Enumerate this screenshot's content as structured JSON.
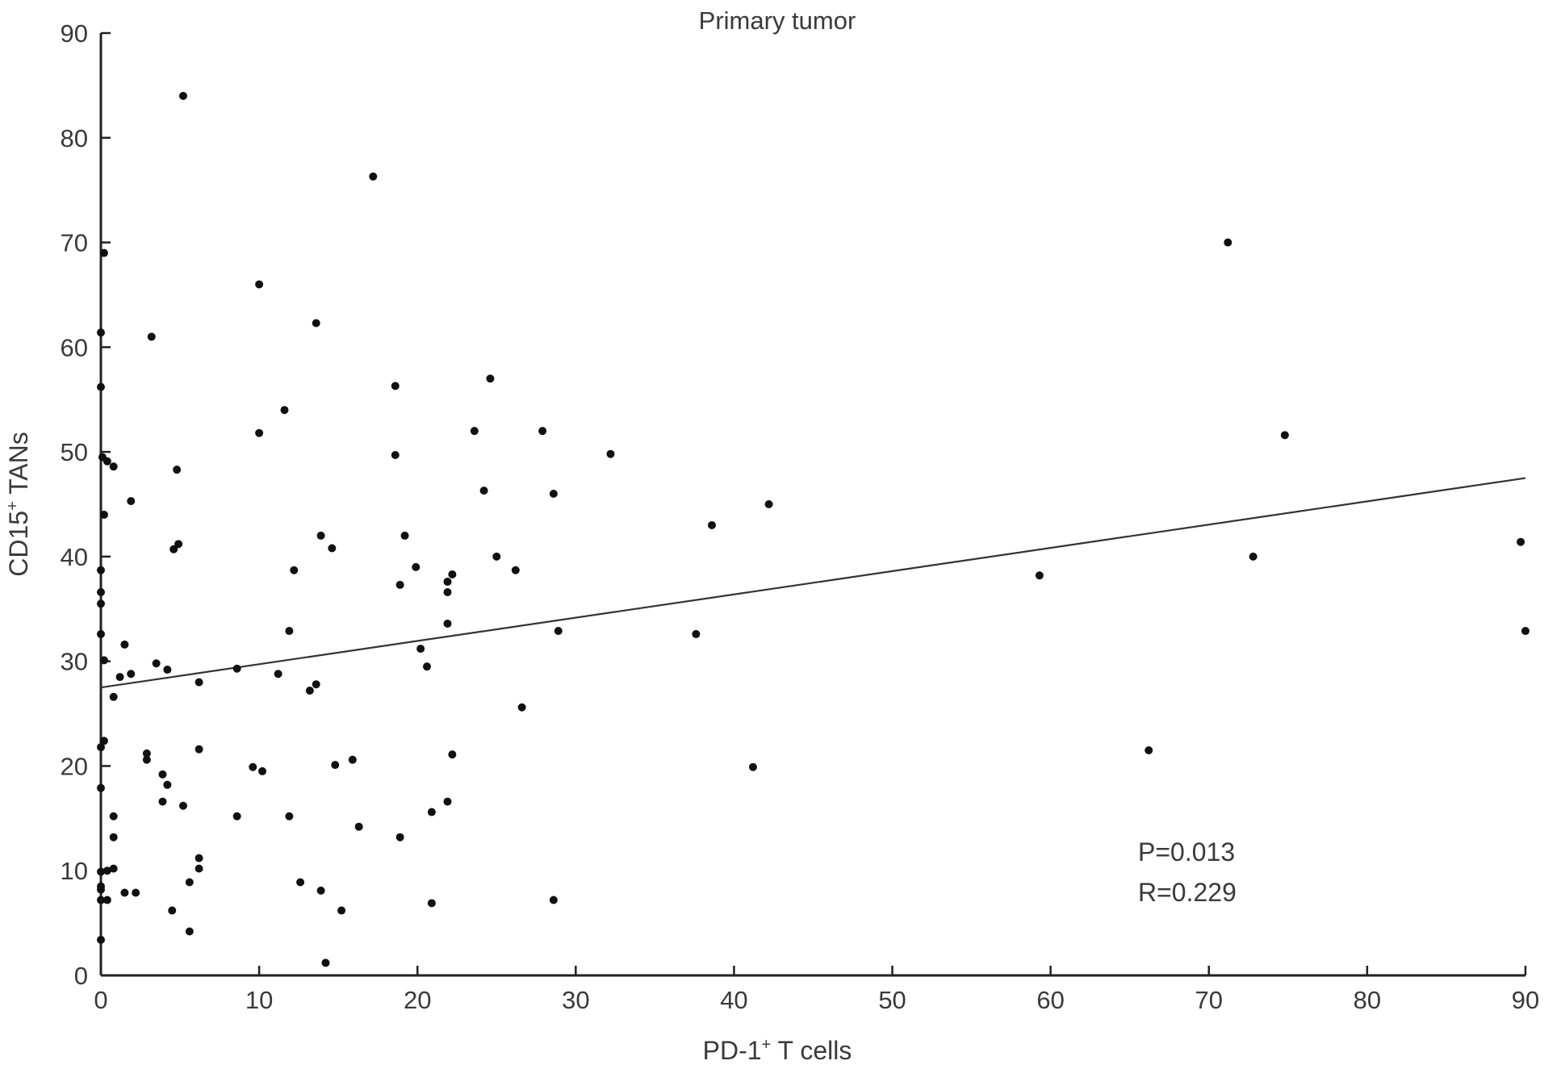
{
  "chart_data": {
    "type": "scatter",
    "title": "Primary tumor",
    "xlabel": "PD-1",
    "xlabel_sup": "+",
    "xlabel_suffix": " T cells",
    "ylabel": "CD15",
    "ylabel_sup": "+",
    "ylabel_suffix": " TANs",
    "xlim": [
      0,
      90
    ],
    "ylim": [
      0,
      90
    ],
    "xticks": [
      0,
      10,
      20,
      30,
      40,
      50,
      60,
      70,
      80,
      90
    ],
    "yticks": [
      0,
      10,
      20,
      30,
      40,
      50,
      60,
      70,
      80,
      90
    ],
    "grid": false,
    "annotations": [
      "P=0.013",
      "R=0.229"
    ],
    "regression": {
      "x": [
        0,
        90
      ],
      "y": [
        27.5,
        47.5
      ]
    },
    "points": [
      [
        5.2,
        84
      ],
      [
        17.2,
        76.3
      ],
      [
        71.2,
        70
      ],
      [
        0.2,
        69
      ],
      [
        10,
        66
      ],
      [
        13.6,
        62.3
      ],
      [
        0,
        61.4
      ],
      [
        3.2,
        61
      ],
      [
        0,
        56.2
      ],
      [
        18.6,
        56.3
      ],
      [
        24.6,
        57
      ],
      [
        11.6,
        54
      ],
      [
        74.8,
        51.6
      ],
      [
        10,
        51.8
      ],
      [
        23.6,
        52
      ],
      [
        27.9,
        52
      ],
      [
        32.2,
        49.8
      ],
      [
        18.6,
        49.7
      ],
      [
        0.1,
        49.5
      ],
      [
        0.4,
        49.1
      ],
      [
        0.8,
        48.6
      ],
      [
        4.8,
        48.3
      ],
      [
        1.9,
        45.3
      ],
      [
        28.6,
        46
      ],
      [
        24.2,
        46.3
      ],
      [
        42.2,
        45
      ],
      [
        0.2,
        44
      ],
      [
        38.6,
        43
      ],
      [
        13.9,
        42
      ],
      [
        19.2,
        42
      ],
      [
        4.6,
        40.7
      ],
      [
        4.9,
        41.2
      ],
      [
        14.6,
        40.8
      ],
      [
        25,
        40
      ],
      [
        72.8,
        40
      ],
      [
        89.7,
        41.4
      ],
      [
        0,
        38.7
      ],
      [
        12.2,
        38.7
      ],
      [
        19.9,
        39
      ],
      [
        26.2,
        38.7
      ],
      [
        22.2,
        38.3
      ],
      [
        59.3,
        38.2
      ],
      [
        18.9,
        37.3
      ],
      [
        21.9,
        37.6
      ],
      [
        21.9,
        36.6
      ],
      [
        0,
        36.6
      ],
      [
        0,
        35.5
      ],
      [
        21.9,
        33.6
      ],
      [
        11.9,
        32.9
      ],
      [
        28.9,
        32.9
      ],
      [
        37.6,
        32.6
      ],
      [
        90,
        32.9
      ],
      [
        0,
        32.6
      ],
      [
        1.5,
        31.6
      ],
      [
        20.2,
        31.2
      ],
      [
        0.2,
        30.1
      ],
      [
        3.5,
        29.8
      ],
      [
        20.6,
        29.5
      ],
      [
        8.6,
        29.3
      ],
      [
        4.2,
        29.2
      ],
      [
        11.2,
        28.8
      ],
      [
        1.9,
        28.8
      ],
      [
        1.2,
        28.5
      ],
      [
        6.2,
        28
      ],
      [
        13.6,
        27.8
      ],
      [
        13.2,
        27.2
      ],
      [
        0.8,
        26.6
      ],
      [
        26.6,
        25.6
      ],
      [
        0.2,
        22.4
      ],
      [
        0,
        21.8
      ],
      [
        6.2,
        21.6
      ],
      [
        66.2,
        21.5
      ],
      [
        2.9,
        21.2
      ],
      [
        22.2,
        21.1
      ],
      [
        2.9,
        20.6
      ],
      [
        15.9,
        20.6
      ],
      [
        14.8,
        20.1
      ],
      [
        9.6,
        19.9
      ],
      [
        41.2,
        19.9
      ],
      [
        10.2,
        19.5
      ],
      [
        3.9,
        19.2
      ],
      [
        4.2,
        18.2
      ],
      [
        0,
        17.9
      ],
      [
        3.9,
        16.6
      ],
      [
        21.9,
        16.6
      ],
      [
        5.2,
        16.2
      ],
      [
        20.9,
        15.6
      ],
      [
        8.6,
        15.2
      ],
      [
        0.8,
        15.2
      ],
      [
        11.9,
        15.2
      ],
      [
        16.3,
        14.2
      ],
      [
        0.8,
        13.2
      ],
      [
        18.9,
        13.2
      ],
      [
        6.2,
        11.2
      ],
      [
        6.2,
        10.2
      ],
      [
        0.8,
        10.2
      ],
      [
        0.4,
        10
      ],
      [
        0,
        9.9
      ],
      [
        5.6,
        8.9
      ],
      [
        12.6,
        8.9
      ],
      [
        0,
        8.5
      ],
      [
        0,
        8.2
      ],
      [
        1.5,
        7.9
      ],
      [
        2.2,
        7.9
      ],
      [
        13.9,
        8.1
      ],
      [
        0,
        7.2
      ],
      [
        0.4,
        7.2
      ],
      [
        20.9,
        6.9
      ],
      [
        28.6,
        7.2
      ],
      [
        4.5,
        6.2
      ],
      [
        15.2,
        6.2
      ],
      [
        5.6,
        4.2
      ],
      [
        0,
        3.4
      ],
      [
        14.2,
        1.2
      ]
    ]
  }
}
